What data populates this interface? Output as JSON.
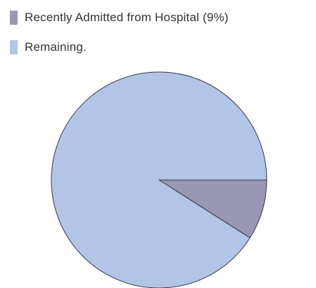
{
  "chart_data": {
    "type": "pie",
    "slices": [
      {
        "label": "Recently Admitted from Hospital (9%)",
        "value": 9,
        "color": "#9a97b5"
      },
      {
        "label": "Remaining.",
        "value": 91,
        "color": "#b2c5e6"
      }
    ],
    "legend_position": "top-left",
    "stroke_color": "#3a3a4a"
  }
}
